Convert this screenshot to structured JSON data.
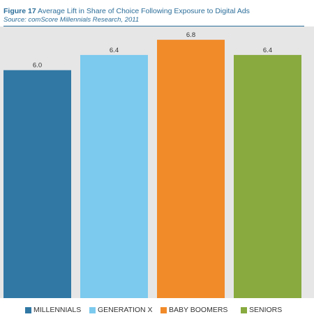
{
  "figure": {
    "label": "Figure 17",
    "title": "Average Lift in Share of Choice Following Exposure to Digital Ads",
    "source": "Source: comScore Millennials Research, 2011"
  },
  "chart_data": {
    "type": "bar",
    "title": "Average Lift in Share of Choice Following Exposure to Digital Ads",
    "categories": [
      "MILLENNIALS",
      "GENERATION X",
      "BABY BOOMERS",
      "SENIORS"
    ],
    "values": [
      6.0,
      6.4,
      6.8,
      6.4
    ],
    "value_labels": [
      "6.0",
      "6.4",
      "6.8",
      "6.4"
    ],
    "colors": [
      "#3178a5",
      "#7ccaee",
      "#f18b2a",
      "#88aa3f"
    ],
    "background": "#e6e6e6",
    "xlabel": "",
    "ylabel": "",
    "ylim": [
      0,
      7.15
    ],
    "grid": false,
    "legend": "bottom"
  }
}
